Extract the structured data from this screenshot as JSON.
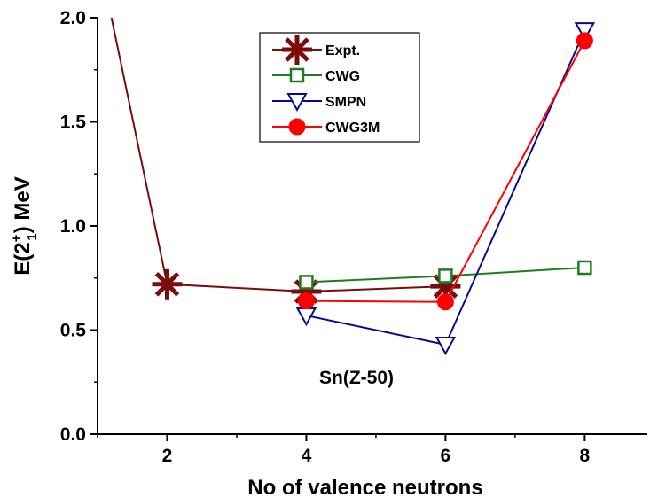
{
  "chart_data": {
    "type": "line",
    "title": "",
    "xlabel": "No of valence neutrons",
    "ylabel": {
      "prefix": "E(2",
      "sup": "+",
      "sub": "1",
      "suffix": ") MeV"
    },
    "xlim": [
      1.0,
      8.9
    ],
    "ylim": [
      0.0,
      2.0
    ],
    "xticks": [
      2,
      4,
      6,
      8
    ],
    "xtick_labels": [
      "2",
      "4",
      "6",
      "8"
    ],
    "yticks": [
      0.0,
      0.5,
      1.0,
      1.5,
      2.0
    ],
    "ytick_labels": [
      "0.0",
      "0.5",
      "1.0",
      "1.5",
      "2.0"
    ],
    "grid": false,
    "legend_position": "top-center",
    "annotation": "Sn(Z-50)",
    "series": [
      {
        "name": "Expt.",
        "color": "#7b0c0c",
        "marker": "asterisk",
        "x": [
          2,
          4,
          6
        ],
        "y": [
          0.72,
          0.685,
          0.71
        ],
        "lead_in": {
          "x": 1.2,
          "y": 2.0
        }
      },
      {
        "name": "CWG",
        "color": "#1e7e1e",
        "marker": "open-square",
        "x": [
          4,
          6,
          8
        ],
        "y": [
          0.73,
          0.76,
          0.8
        ]
      },
      {
        "name": "SMPN",
        "color": "#0a0a8c",
        "marker": "open-triangle-down",
        "x": [
          4,
          6,
          8
        ],
        "y": [
          0.57,
          0.43,
          1.94
        ]
      },
      {
        "name": "CWG3M",
        "color": "#ff0000",
        "marker": "filled-circle",
        "x": [
          4,
          6,
          8
        ],
        "y": [
          0.64,
          0.635,
          1.89
        ]
      }
    ]
  }
}
